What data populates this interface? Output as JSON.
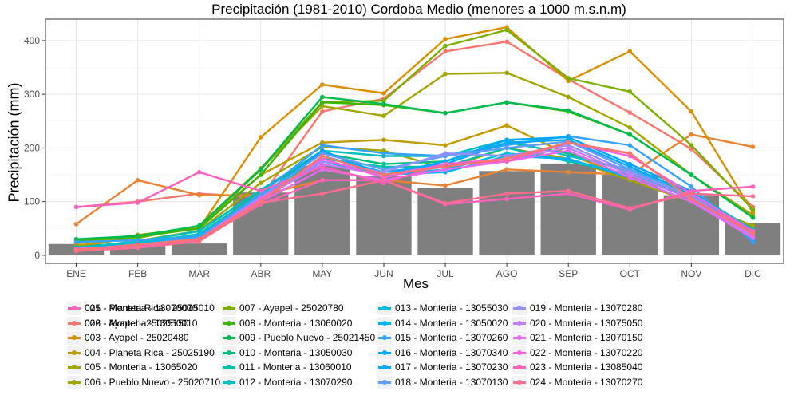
{
  "chart_data": {
    "type": "bar+line",
    "title": "Precipitación (1981-2010) Cordoba Medio (menores a 1000 m.s.n.m)",
    "xlabel": "Mes",
    "ylabel": "Precipitación (mm)",
    "categories": [
      "ENE",
      "FEB",
      "MAR",
      "ABR",
      "MAY",
      "JUN",
      "JUL",
      "AGO",
      "SEP",
      "OCT",
      "NOV",
      "DIC"
    ],
    "ylim": [
      -15,
      440
    ],
    "yticks": [
      0,
      100,
      200,
      300,
      400
    ],
    "grid": true,
    "legend_position": "bottom",
    "bar_color": "#7f7f7f",
    "bars": [
      21,
      19,
      22,
      117,
      167,
      147,
      125,
      157,
      171,
      150,
      112,
      60
    ],
    "series": [
      {
        "name": "001 - Planeta Rica - 25015010",
        "color": "#F8766D",
        "values": [
          90,
          100,
          115,
          108,
          268,
          292,
          380,
          398,
          328,
          266,
          198,
          90
        ]
      },
      {
        "name": "002 - Ayapel - 25025150",
        "color": "#EA8331",
        "values": [
          58,
          140,
          112,
          112,
          140,
          140,
          130,
          160,
          155,
          150,
          225,
          202
        ]
      },
      {
        "name": "003 - Ayapel - 25020480",
        "color": "#D89000",
        "values": [
          15,
          35,
          50,
          220,
          318,
          302,
          403,
          425,
          325,
          380,
          268,
          80
        ]
      },
      {
        "name": "004 - Planeta Rica - 25025190",
        "color": "#C09B00",
        "values": [
          18,
          34,
          52,
          150,
          210,
          215,
          205,
          242,
          188,
          145,
          100,
          55
        ]
      },
      {
        "name": "005 - Monteria - 13065020",
        "color": "#A3A500",
        "values": [
          12,
          27,
          46,
          135,
          202,
          195,
          162,
          200,
          180,
          140,
          100,
          55
        ]
      },
      {
        "name": "006 - Pueblo Nuevo - 25020710",
        "color": "#A3A500",
        "values": [
          22,
          38,
          52,
          160,
          278,
          260,
          338,
          340,
          295,
          238,
          150,
          75
        ]
      },
      {
        "name": "007 - Ayapel - 25020780",
        "color": "#7CAE00",
        "values": [
          25,
          32,
          55,
          162,
          285,
          288,
          390,
          420,
          330,
          305,
          205,
          85
        ]
      },
      {
        "name": "008 - Monteria - 13060020",
        "color": "#39B600",
        "values": [
          28,
          35,
          50,
          150,
          285,
          280,
          265,
          285,
          268,
          225,
          150,
          70
        ]
      },
      {
        "name": "009 - Pueblo Nuevo - 25021450",
        "color": "#00BB4E",
        "values": [
          30,
          36,
          55,
          160,
          295,
          282,
          265,
          285,
          270,
          225,
          150,
          70
        ]
      },
      {
        "name": "010 - Monteria - 13050030",
        "color": "#00BF7D",
        "values": [
          15,
          25,
          45,
          120,
          190,
          170,
          175,
          210,
          190,
          155,
          115,
          45
        ]
      },
      {
        "name": "011 - Monteria - 13060010",
        "color": "#00C1A3",
        "values": [
          12,
          22,
          40,
          115,
          180,
          165,
          165,
          200,
          175,
          150,
          110,
          40
        ]
      },
      {
        "name": "012 - Monteria - 13070290",
        "color": "#00BFC4",
        "values": [
          14,
          26,
          45,
          122,
          195,
          185,
          185,
          215,
          185,
          160,
          118,
          48
        ]
      },
      {
        "name": "013 - Monteria - 13055030",
        "color": "#00BAE0",
        "values": [
          10,
          22,
          38,
          110,
          175,
          150,
          160,
          190,
          178,
          150,
          105,
          38
        ]
      },
      {
        "name": "014 - Monteria - 13050020",
        "color": "#00B0F6",
        "values": [
          12,
          20,
          35,
          105,
          170,
          150,
          155,
          185,
          180,
          145,
          100,
          35
        ]
      },
      {
        "name": "015 - Monteria - 13070260",
        "color": "#35A2FF",
        "values": [
          25,
          28,
          35,
          115,
          205,
          190,
          185,
          205,
          222,
          205,
          128,
          25
        ]
      },
      {
        "name": "016 - Monteria - 13070340",
        "color": "#00A5FF",
        "values": [
          10,
          18,
          32,
          110,
          195,
          150,
          175,
          215,
          220,
          170,
          120,
          30
        ]
      },
      {
        "name": "017 - Monteria - 13070230",
        "color": "#00A9FF",
        "values": [
          8,
          18,
          30,
          100,
          185,
          155,
          170,
          210,
          215,
          165,
          115,
          32
        ]
      },
      {
        "name": "018 - Monteria - 13070130",
        "color": "#619CFF",
        "values": [
          10,
          20,
          32,
          110,
          190,
          160,
          185,
          200,
          212,
          160,
          110,
          40
        ]
      },
      {
        "name": "019 - Monteria - 13070280",
        "color": "#9590FF",
        "values": [
          11,
          20,
          30,
          108,
          175,
          155,
          190,
          185,
          205,
          155,
          110,
          38
        ]
      },
      {
        "name": "020 - Monteria - 13075050",
        "color": "#C77CFF",
        "values": [
          10,
          18,
          28,
          105,
          170,
          150,
          168,
          180,
          200,
          150,
          105,
          35
        ]
      },
      {
        "name": "021 - Monteria - 13070150",
        "color": "#E76BF3",
        "values": [
          8,
          15,
          28,
          100,
          160,
          140,
          160,
          175,
          195,
          145,
          100,
          32
        ]
      },
      {
        "name": "022 - Monteria - 13070220",
        "color": "#FA62DB",
        "values": [
          12,
          18,
          30,
          105,
          180,
          145,
          170,
          180,
          210,
          185,
          115,
          45
        ]
      },
      {
        "name": "023 - Monteria - 13085040",
        "color": "#FF62BC",
        "values": [
          10,
          16,
          28,
          95,
          140,
          140,
          95,
          105,
          115,
          85,
          120,
          128
        ]
      },
      {
        "name": "024 - Monteria - 13070270",
        "color": "#FF6C91",
        "values": [
          8,
          14,
          26,
          98,
          115,
          140,
          97,
          115,
          120,
          88,
          115,
          110
        ]
      },
      {
        "name": "025 - Monteria - 13070070",
        "color": "#FF62BC",
        "values": [
          90,
          98,
          155,
          120,
          165,
          135,
          170,
          175,
          210,
          190,
          105,
          45
        ]
      },
      {
        "name": "026 - Monteria - 13050010",
        "color": "#F8766D",
        "values": [
          10,
          20,
          30,
          100,
          185,
          150,
          165,
          180,
          210,
          190,
          105,
          40
        ]
      }
    ]
  }
}
